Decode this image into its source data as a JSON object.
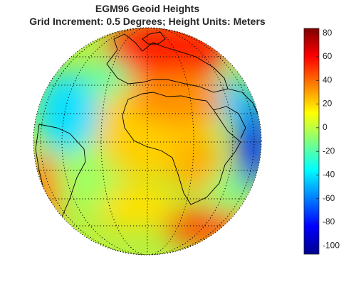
{
  "title": [
    "EGM96 Geoid Heights",
    "Grid Increment: 0.5 Degrees; Height Units: Meters"
  ],
  "colorbar": {
    "colormap": "jet",
    "lim": [
      -107,
      84
    ],
    "ticks": [
      80,
      60,
      40,
      20,
      0,
      -20,
      -40,
      -60,
      -80,
      -100
    ]
  }
}
